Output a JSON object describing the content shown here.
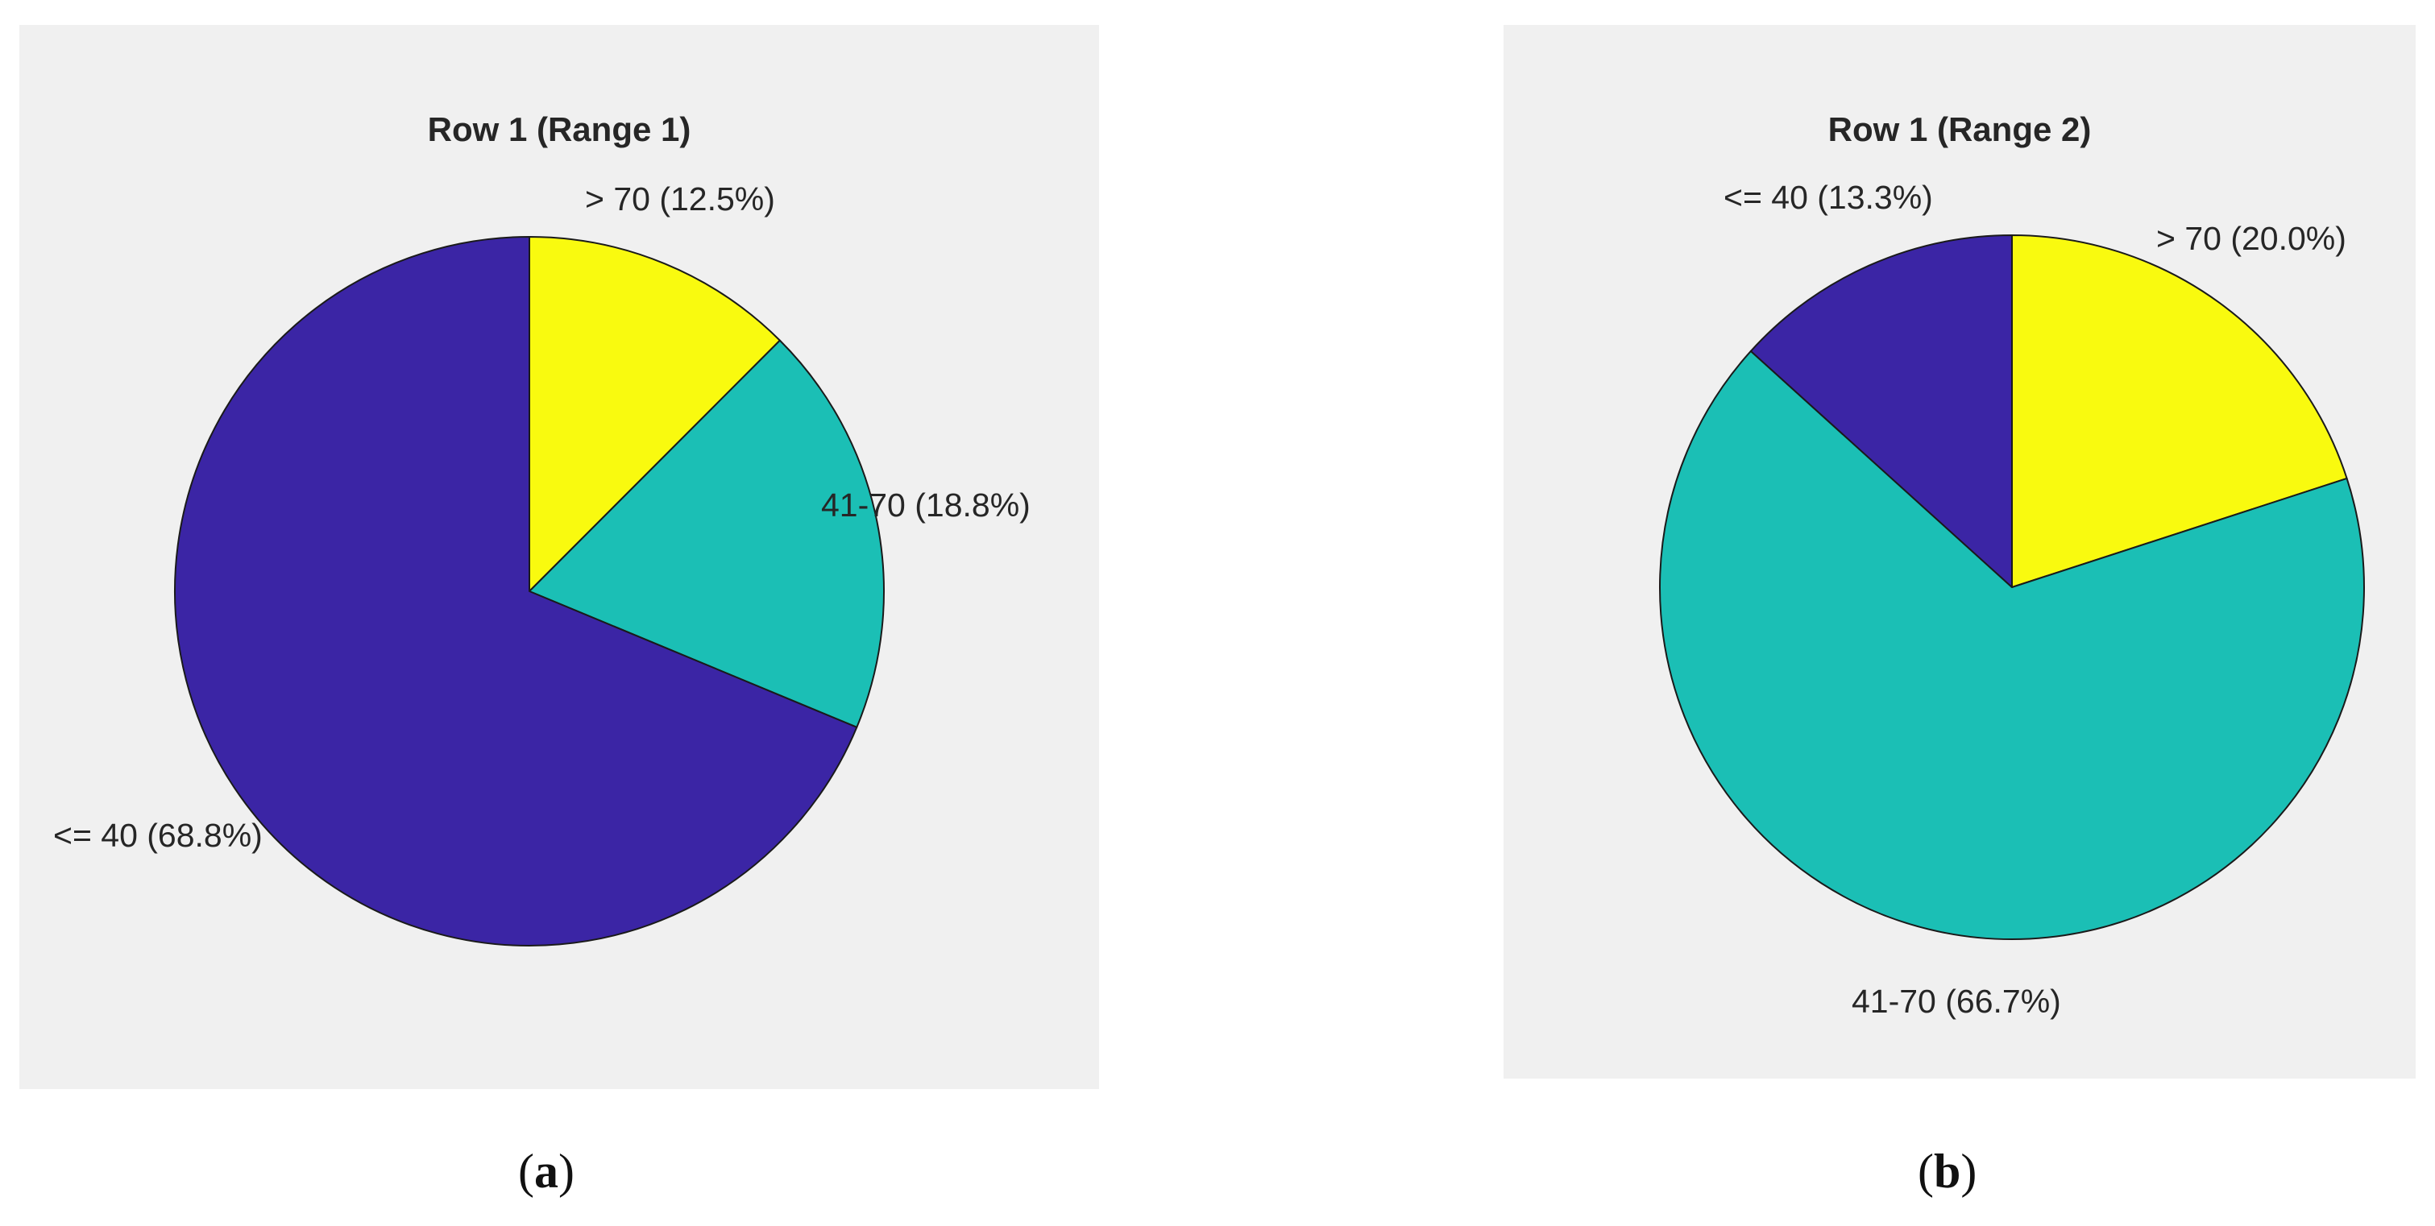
{
  "chart_data": [
    {
      "type": "pie",
      "title": "Row 1 (Range 1)",
      "caption": {
        "prefix": "(",
        "letter": "a",
        "suffix": ")"
      },
      "start_angle_deg": 90,
      "direction": "clockwise",
      "slices": [
        {
          "label": "> 70 (12.5%)",
          "category": "> 70",
          "percent": 12.5,
          "color": "#f9fa0f"
        },
        {
          "label": "41-70 (18.8%)",
          "category": "41-70",
          "percent": 18.8,
          "color": "#1bbfb5"
        },
        {
          "label": "<= 40 (68.8%)",
          "category": "<= 40",
          "percent": 68.8,
          "color": "#3b25a5"
        }
      ]
    },
    {
      "type": "pie",
      "title": "Row 1 (Range 2)",
      "caption": {
        "prefix": "(",
        "letter": "b",
        "suffix": ")"
      },
      "start_angle_deg": 90,
      "direction": "clockwise",
      "slices": [
        {
          "label": "> 70 (20.0%)",
          "category": "> 70",
          "percent": 20.0,
          "color": "#f9fa0f"
        },
        {
          "label": "41-70 (66.7%)",
          "category": "41-70",
          "percent": 66.7,
          "color": "#1bbfb5"
        },
        {
          "label": "<= 40 (13.3%)",
          "category": "<= 40",
          "percent": 13.3,
          "color": "#3b25a5"
        }
      ]
    }
  ],
  "style": {
    "panel_background": "#f0f0f0",
    "slice_edge_color": "#1a1a1a"
  }
}
